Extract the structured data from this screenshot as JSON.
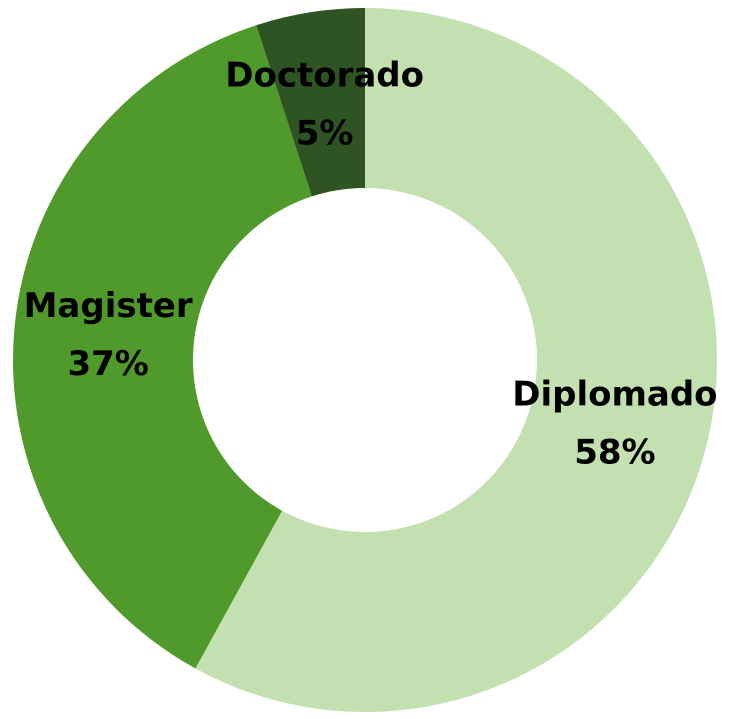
{
  "chart_data": {
    "type": "donut",
    "categories": [
      "Diplomado",
      "Magister",
      "Doctorado"
    ],
    "values": [
      58,
      37,
      5
    ],
    "value_labels": [
      "58%",
      "37%",
      "5%"
    ],
    "colors": [
      "#c3e0b0",
      "#4f9a2a",
      "#2f5424"
    ]
  }
}
